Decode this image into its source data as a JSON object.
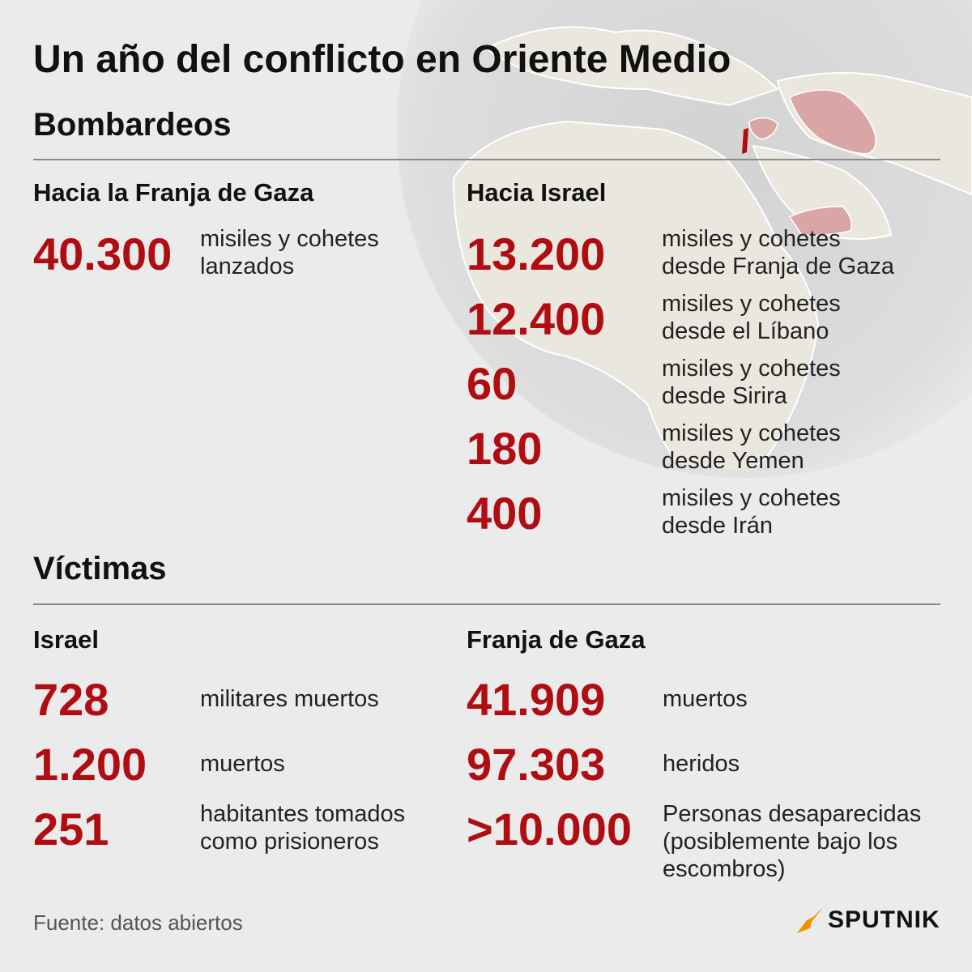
{
  "title": "Un año del conflicto en Oriente Medio",
  "bombardeos": {
    "heading": "Bombardeos",
    "gaza": {
      "heading": "Hacia la Franja de Gaza",
      "items": [
        {
          "value": "40.300",
          "line1": "misiles y cohetes",
          "line2": "lanzados"
        }
      ]
    },
    "israel": {
      "heading": "Hacia Israel",
      "items": [
        {
          "value": "13.200",
          "line1": "misiles y cohetes",
          "line2": "desde Franja de Gaza"
        },
        {
          "value": "12.400",
          "line1": "misiles y cohetes",
          "line2": "desde el Líbano"
        },
        {
          "value": "60",
          "line1": "misiles y cohetes",
          "line2": "desde Sirira"
        },
        {
          "value": "180",
          "line1": "misiles y cohetes",
          "line2": "desde Yemen"
        },
        {
          "value": "400",
          "line1": "misiles y cohetes",
          "line2": "desde Irán"
        }
      ]
    }
  },
  "victimas": {
    "heading": "Víctimas",
    "israel": {
      "heading": "Israel",
      "items": [
        {
          "value": "728",
          "line1": "militares muertos"
        },
        {
          "value": "1.200",
          "line1": "muertos"
        },
        {
          "value": "251",
          "line1": "habitantes tomados",
          "line2": "como prisioneros"
        }
      ]
    },
    "gaza": {
      "heading": "Franja de Gaza",
      "items": [
        {
          "value": "41.909",
          "line1": "muertos"
        },
        {
          "value": "97.303",
          "line1": "heridos"
        },
        {
          "value": ">10.000",
          "line1": "Personas desaparecidas",
          "line2": "(posiblemente bajo los",
          "line3": "escombros)"
        }
      ]
    }
  },
  "footer": {
    "source": "Fuente: datos abiertos",
    "brand": "SPUTNIK"
  },
  "colors": {
    "background": "#ebebeb",
    "accent": "#b00d12",
    "brand_orange": "#f29100"
  }
}
